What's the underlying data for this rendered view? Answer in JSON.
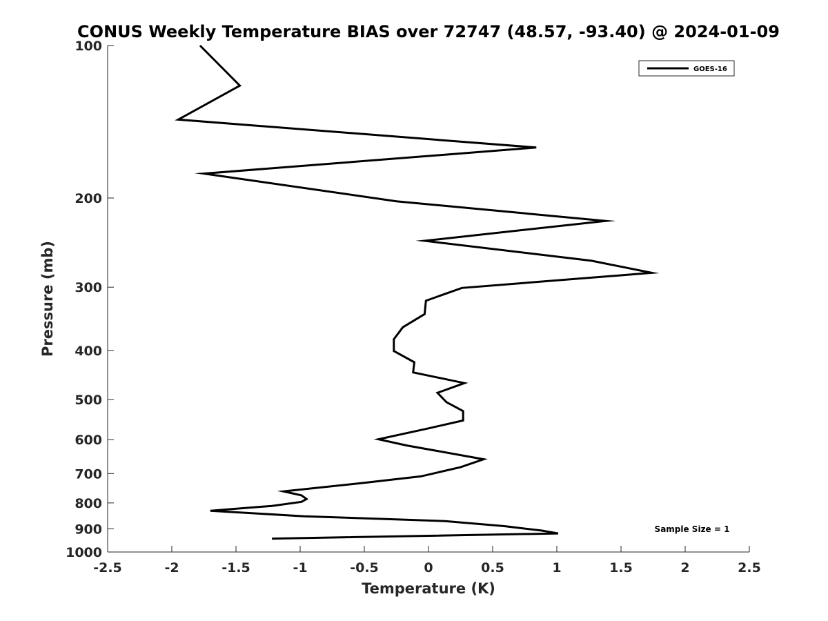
{
  "chart_data": {
    "type": "line",
    "title": "CONUS Weekly Temperature BIAS over 72747 (48.57, -93.40) @ 2024-01-09",
    "xlabel": "Temperature (K)",
    "ylabel": "Pressure (mb)",
    "xlim": [
      -2.5,
      2.5
    ],
    "ylim": [
      1000,
      100
    ],
    "y_scale": "log",
    "y_reversed": true,
    "xticks": [
      -2.5,
      -2,
      -1.5,
      -1,
      -0.5,
      0,
      0.5,
      1,
      1.5,
      2,
      2.5
    ],
    "xtick_labels": [
      "-2.5",
      "-2",
      "-1.5",
      "-1",
      "-0.5",
      "0",
      "0.5",
      "1",
      "1.5",
      "2",
      "2.5"
    ],
    "yticks": [
      100,
      200,
      300,
      400,
      500,
      600,
      700,
      800,
      900,
      1000
    ],
    "ytick_labels": [
      "100",
      "200",
      "300",
      "400",
      "500",
      "600",
      "700",
      "800",
      "900",
      "1000"
    ],
    "grid": false,
    "legend_position": "top-right",
    "series": [
      {
        "name": "GOES-16",
        "color": "#000000",
        "points": [
          {
            "x": -1.78,
            "y": 100
          },
          {
            "x": -1.47,
            "y": 120
          },
          {
            "x": -1.95,
            "y": 140
          },
          {
            "x": 0.84,
            "y": 159
          },
          {
            "x": -1.75,
            "y": 179
          },
          {
            "x": -0.25,
            "y": 203
          },
          {
            "x": 1.38,
            "y": 222
          },
          {
            "x": -0.03,
            "y": 243
          },
          {
            "x": 1.27,
            "y": 266
          },
          {
            "x": 1.74,
            "y": 281
          },
          {
            "x": 0.26,
            "y": 301
          },
          {
            "x": -0.02,
            "y": 319
          },
          {
            "x": -0.03,
            "y": 339
          },
          {
            "x": -0.2,
            "y": 360
          },
          {
            "x": -0.27,
            "y": 380
          },
          {
            "x": -0.27,
            "y": 401
          },
          {
            "x": -0.11,
            "y": 422
          },
          {
            "x": -0.12,
            "y": 442
          },
          {
            "x": 0.28,
            "y": 464
          },
          {
            "x": 0.07,
            "y": 485
          },
          {
            "x": 0.14,
            "y": 506
          },
          {
            "x": 0.27,
            "y": 527
          },
          {
            "x": 0.27,
            "y": 550
          },
          {
            "x": 0.0,
            "y": 570
          },
          {
            "x": -0.39,
            "y": 599
          },
          {
            "x": -0.17,
            "y": 616
          },
          {
            "x": 0.43,
            "y": 656
          },
          {
            "x": 0.25,
            "y": 680
          },
          {
            "x": -0.06,
            "y": 709
          },
          {
            "x": -0.52,
            "y": 731
          },
          {
            "x": -1.13,
            "y": 759
          },
          {
            "x": -0.99,
            "y": 773
          },
          {
            "x": -0.95,
            "y": 786
          },
          {
            "x": -0.99,
            "y": 796
          },
          {
            "x": -1.22,
            "y": 811
          },
          {
            "x": -1.7,
            "y": 829
          },
          {
            "x": -0.97,
            "y": 850
          },
          {
            "x": 0.13,
            "y": 869
          },
          {
            "x": 0.59,
            "y": 889
          },
          {
            "x": 0.88,
            "y": 907
          },
          {
            "x": 1.01,
            "y": 919
          },
          {
            "x": -1.22,
            "y": 941
          }
        ]
      }
    ],
    "annotation": "Sample Size = 1"
  }
}
